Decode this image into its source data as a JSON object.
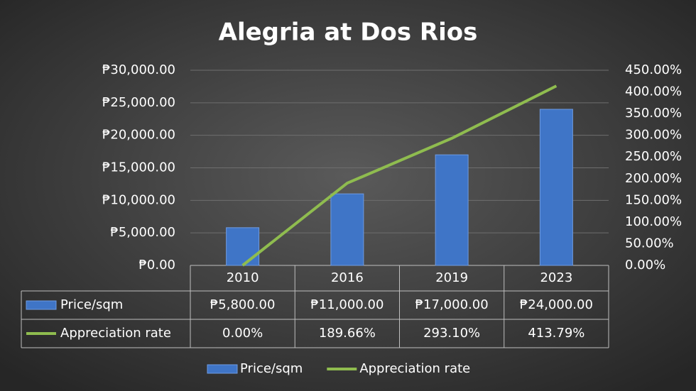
{
  "chart_data": {
    "type": "bar-line",
    "title": "Alegria at Dos Rios",
    "categories": [
      "2010",
      "2016",
      "2019",
      "2023"
    ],
    "series": [
      {
        "name": "Price/sqm",
        "type": "bar",
        "color": "#3f75c7",
        "values": [
          5800,
          11000,
          17000,
          24000
        ],
        "value_labels": [
          "₱5,800.00",
          "₱11,000.00",
          "₱17,000.00",
          "₱24,000.00"
        ]
      },
      {
        "name": "Appreciation rate",
        "type": "line",
        "axis": "y2",
        "color": "#8fbc4f",
        "values": [
          0,
          189.66,
          293.1,
          413.79
        ],
        "value_labels": [
          "0.00%",
          "189.66%",
          "293.10%",
          "413.79%"
        ]
      }
    ],
    "ylim": [
      0,
      30000
    ],
    "yticks": [
      {
        "value": 0,
        "label": "₱0.00"
      },
      {
        "value": 5000,
        "label": "₱5,000.00"
      },
      {
        "value": 10000,
        "label": "₱10,000.00"
      },
      {
        "value": 15000,
        "label": "₱15,000.00"
      },
      {
        "value": 20000,
        "label": "₱20,000.00"
      },
      {
        "value": 25000,
        "label": "₱25,000.00"
      },
      {
        "value": 30000,
        "label": "₱30,000.00"
      }
    ],
    "y2lim": [
      0,
      450
    ],
    "y2ticks": [
      {
        "value": 0,
        "label": "0.00%"
      },
      {
        "value": 50,
        "label": "50.00%"
      },
      {
        "value": 100,
        "label": "100.00%"
      },
      {
        "value": 150,
        "label": "150.00%"
      },
      {
        "value": 200,
        "label": "200.00%"
      },
      {
        "value": 250,
        "label": "250.00%"
      },
      {
        "value": 300,
        "label": "300.00%"
      },
      {
        "value": 350,
        "label": "350.00%"
      },
      {
        "value": 400,
        "label": "400.00%"
      },
      {
        "value": 450,
        "label": "450.00%"
      }
    ],
    "grid": true,
    "legend": "bottom"
  }
}
